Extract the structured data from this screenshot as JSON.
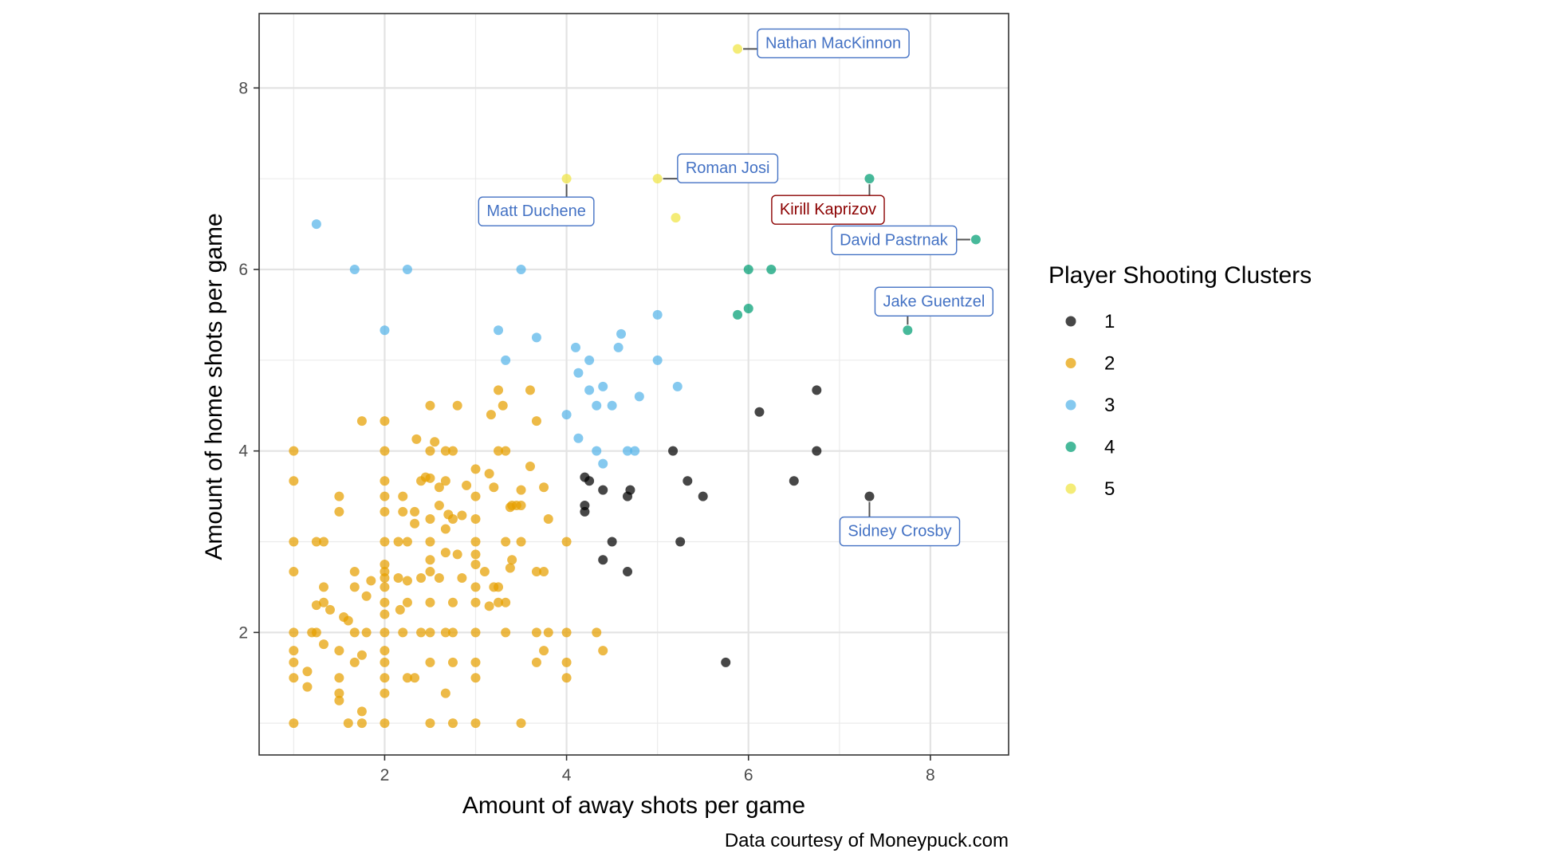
{
  "chart_data": {
    "type": "scatter",
    "xlabel": "Amount of away shots per game",
    "ylabel": "Amount of home shots per game",
    "caption": "Data courtesy of Moneypuck.com",
    "xlim": [
      0.62,
      8.86
    ],
    "ylim": [
      0.65,
      8.82
    ],
    "x_ticks": [
      2,
      4,
      6,
      8
    ],
    "y_ticks": [
      2,
      4,
      6,
      8
    ],
    "grid": true,
    "legend": {
      "title": "Player Shooting Clusters",
      "position": "right"
    },
    "series": [
      {
        "name": "1",
        "color": "#000000",
        "points": [
          [
            6.75,
            4.67
          ],
          [
            6.12,
            4.43
          ],
          [
            5.17,
            4.0
          ],
          [
            6.75,
            4.0
          ],
          [
            4.2,
            3.71
          ],
          [
            4.4,
            3.57
          ],
          [
            4.25,
            3.67
          ],
          [
            4.7,
            3.57
          ],
          [
            4.67,
            3.5
          ],
          [
            5.33,
            3.67
          ],
          [
            5.5,
            3.5
          ],
          [
            6.5,
            3.67
          ],
          [
            7.33,
            3.5
          ],
          [
            4.2,
            3.4
          ],
          [
            4.2,
            3.33
          ],
          [
            4.5,
            3.0
          ],
          [
            5.25,
            3.0
          ],
          [
            4.4,
            2.8
          ],
          [
            4.67,
            2.67
          ],
          [
            5.75,
            1.67
          ]
        ]
      },
      {
        "name": "2",
        "color": "#E69F00",
        "points": [
          [
            1.0,
            4.0
          ],
          [
            1.0,
            3.67
          ],
          [
            1.0,
            3.0
          ],
          [
            1.0,
            2.67
          ],
          [
            1.0,
            2.0
          ],
          [
            1.0,
            1.8
          ],
          [
            1.0,
            1.67
          ],
          [
            1.0,
            1.5
          ],
          [
            1.0,
            1.0
          ],
          [
            1.2,
            2.0
          ],
          [
            1.15,
            1.57
          ],
          [
            1.15,
            1.4
          ],
          [
            1.25,
            3.0
          ],
          [
            1.25,
            2.0
          ],
          [
            1.25,
            2.3
          ],
          [
            1.33,
            3.0
          ],
          [
            1.33,
            2.5
          ],
          [
            1.33,
            2.33
          ],
          [
            1.33,
            1.87
          ],
          [
            1.4,
            2.25
          ],
          [
            1.5,
            3.5
          ],
          [
            1.5,
            3.33
          ],
          [
            1.5,
            1.8
          ],
          [
            1.5,
            1.5
          ],
          [
            1.5,
            1.33
          ],
          [
            1.5,
            1.25
          ],
          [
            1.55,
            2.17
          ],
          [
            1.6,
            2.13
          ],
          [
            1.6,
            1.0
          ],
          [
            1.67,
            2.67
          ],
          [
            1.67,
            2.5
          ],
          [
            1.67,
            2.0
          ],
          [
            1.67,
            1.67
          ],
          [
            1.75,
            4.33
          ],
          [
            1.75,
            1.75
          ],
          [
            1.75,
            1.13
          ],
          [
            1.75,
            1.0
          ],
          [
            1.8,
            2.0
          ],
          [
            1.8,
            2.4
          ],
          [
            1.85,
            2.57
          ],
          [
            2.0,
            4.33
          ],
          [
            2.0,
            4.0
          ],
          [
            2.0,
            3.67
          ],
          [
            2.0,
            3.5
          ],
          [
            2.0,
            3.33
          ],
          [
            2.0,
            3.0
          ],
          [
            2.0,
            2.67
          ],
          [
            2.0,
            2.6
          ],
          [
            2.0,
            2.5
          ],
          [
            2.0,
            2.33
          ],
          [
            2.0,
            2.0
          ],
          [
            2.0,
            1.67
          ],
          [
            2.0,
            1.5
          ],
          [
            2.0,
            1.33
          ],
          [
            2.0,
            1.0
          ],
          [
            2.0,
            2.75
          ],
          [
            2.0,
            2.2
          ],
          [
            2.0,
            1.8
          ],
          [
            2.15,
            3.0
          ],
          [
            2.15,
            2.6
          ],
          [
            2.17,
            2.25
          ],
          [
            2.2,
            3.33
          ],
          [
            2.2,
            3.5
          ],
          [
            2.2,
            2.0
          ],
          [
            2.25,
            3.0
          ],
          [
            2.25,
            2.33
          ],
          [
            2.25,
            2.57
          ],
          [
            2.25,
            1.5
          ],
          [
            2.33,
            3.33
          ],
          [
            2.33,
            3.2
          ],
          [
            2.33,
            1.5
          ],
          [
            2.35,
            4.13
          ],
          [
            2.4,
            3.67
          ],
          [
            2.4,
            2.6
          ],
          [
            2.4,
            2.0
          ],
          [
            2.45,
            3.71
          ],
          [
            2.5,
            4.5
          ],
          [
            2.5,
            4.0
          ],
          [
            2.5,
            3.7
          ],
          [
            2.5,
            3.25
          ],
          [
            2.5,
            3.0
          ],
          [
            2.5,
            2.8
          ],
          [
            2.5,
            2.67
          ],
          [
            2.5,
            2.33
          ],
          [
            2.5,
            2.0
          ],
          [
            2.5,
            1.67
          ],
          [
            2.5,
            1.0
          ],
          [
            2.55,
            4.1
          ],
          [
            2.6,
            3.6
          ],
          [
            2.6,
            3.4
          ],
          [
            2.6,
            2.6
          ],
          [
            2.67,
            3.67
          ],
          [
            2.67,
            4.0
          ],
          [
            2.67,
            3.14
          ],
          [
            2.67,
            2.88
          ],
          [
            2.67,
            2.0
          ],
          [
            2.67,
            1.33
          ],
          [
            2.7,
            3.3
          ],
          [
            2.75,
            4.0
          ],
          [
            2.75,
            3.25
          ],
          [
            2.75,
            2.33
          ],
          [
            2.75,
            2.0
          ],
          [
            2.75,
            1.67
          ],
          [
            2.75,
            1.0
          ],
          [
            2.8,
            4.5
          ],
          [
            2.8,
            2.86
          ],
          [
            2.85,
            3.29
          ],
          [
            2.85,
            2.6
          ],
          [
            2.9,
            3.62
          ],
          [
            3.0,
            3.8
          ],
          [
            3.0,
            3.5
          ],
          [
            3.0,
            3.25
          ],
          [
            3.0,
            3.0
          ],
          [
            3.0,
            2.86
          ],
          [
            3.0,
            2.75
          ],
          [
            3.0,
            2.5
          ],
          [
            3.0,
            2.33
          ],
          [
            3.0,
            2.0
          ],
          [
            3.0,
            1.67
          ],
          [
            3.0,
            1.5
          ],
          [
            3.0,
            1.0
          ],
          [
            3.1,
            2.67
          ],
          [
            3.15,
            3.75
          ],
          [
            3.15,
            2.29
          ],
          [
            3.17,
            4.4
          ],
          [
            3.2,
            3.6
          ],
          [
            3.2,
            2.5
          ],
          [
            3.25,
            4.67
          ],
          [
            3.25,
            4.0
          ],
          [
            3.25,
            2.33
          ],
          [
            3.25,
            2.5
          ],
          [
            3.3,
            4.5
          ],
          [
            3.33,
            4.0
          ],
          [
            3.33,
            3.0
          ],
          [
            3.33,
            2.33
          ],
          [
            3.33,
            2.0
          ],
          [
            3.38,
            3.38
          ],
          [
            3.38,
            2.71
          ],
          [
            3.4,
            2.8
          ],
          [
            3.4,
            3.4
          ],
          [
            3.45,
            3.4
          ],
          [
            3.5,
            3.57
          ],
          [
            3.5,
            3.4
          ],
          [
            3.5,
            3.0
          ],
          [
            3.5,
            1.0
          ],
          [
            3.6,
            4.67
          ],
          [
            3.6,
            3.83
          ],
          [
            3.67,
            4.33
          ],
          [
            3.67,
            2.67
          ],
          [
            3.67,
            2.0
          ],
          [
            3.67,
            1.67
          ],
          [
            3.75,
            3.6
          ],
          [
            3.75,
            2.67
          ],
          [
            3.75,
            1.8
          ],
          [
            3.8,
            3.25
          ],
          [
            3.8,
            2.0
          ],
          [
            4.0,
            3.0
          ],
          [
            4.0,
            2.0
          ],
          [
            4.0,
            1.67
          ],
          [
            4.0,
            1.5
          ],
          [
            4.33,
            2.0
          ],
          [
            4.4,
            1.8
          ]
        ]
      },
      {
        "name": "3",
        "color": "#56B4E9",
        "points": [
          [
            1.25,
            6.5
          ],
          [
            1.67,
            6.0
          ],
          [
            2.25,
            6.0
          ],
          [
            3.5,
            6.0
          ],
          [
            2.0,
            5.33
          ],
          [
            3.25,
            5.33
          ],
          [
            3.33,
            5.0
          ],
          [
            3.67,
            5.25
          ],
          [
            4.1,
            5.14
          ],
          [
            4.13,
            4.86
          ],
          [
            4.25,
            5.0
          ],
          [
            4.6,
            5.29
          ],
          [
            4.57,
            5.14
          ],
          [
            5.0,
            5.5
          ],
          [
            5.0,
            5.0
          ],
          [
            4.25,
            4.67
          ],
          [
            4.4,
            4.71
          ],
          [
            4.33,
            4.5
          ],
          [
            4.5,
            4.5
          ],
          [
            4.8,
            4.6
          ],
          [
            5.22,
            4.71
          ],
          [
            4.0,
            4.4
          ],
          [
            4.13,
            4.14
          ],
          [
            4.33,
            4.0
          ],
          [
            4.67,
            4.0
          ],
          [
            4.75,
            4.0
          ],
          [
            4.4,
            3.86
          ]
        ]
      },
      {
        "name": "4",
        "color": "#009E73",
        "points": [
          [
            7.33,
            7.0
          ],
          [
            8.5,
            6.33
          ],
          [
            6.0,
            6.0
          ],
          [
            6.25,
            6.0
          ],
          [
            6.0,
            5.57
          ],
          [
            5.88,
            5.5
          ],
          [
            7.75,
            5.33
          ]
        ]
      },
      {
        "name": "5",
        "color": "#F0E442",
        "points": [
          [
            5.88,
            8.43
          ],
          [
            4.0,
            7.0
          ],
          [
            5.0,
            7.0
          ],
          [
            5.2,
            6.57
          ]
        ]
      }
    ],
    "annotations": [
      {
        "label": "Nathan MacKinnon",
        "x": 5.88,
        "y": 8.43,
        "color": "#4472C4"
      },
      {
        "label": "Roman Josi",
        "x": 5.0,
        "y": 7.0,
        "color": "#4472C4"
      },
      {
        "label": "Matt Duchene",
        "x": 4.0,
        "y": 7.0,
        "color": "#4472C4"
      },
      {
        "label": "Kirill Kaprizov",
        "x": 7.33,
        "y": 7.0,
        "color": "#8B0000"
      },
      {
        "label": "David Pastrnak",
        "x": 8.5,
        "y": 6.33,
        "color": "#4472C4"
      },
      {
        "label": "Jake Guentzel",
        "x": 7.75,
        "y": 5.33,
        "color": "#4472C4"
      },
      {
        "label": "Sidney Crosby",
        "x": 7.33,
        "y": 3.5,
        "color": "#4472C4"
      }
    ]
  }
}
